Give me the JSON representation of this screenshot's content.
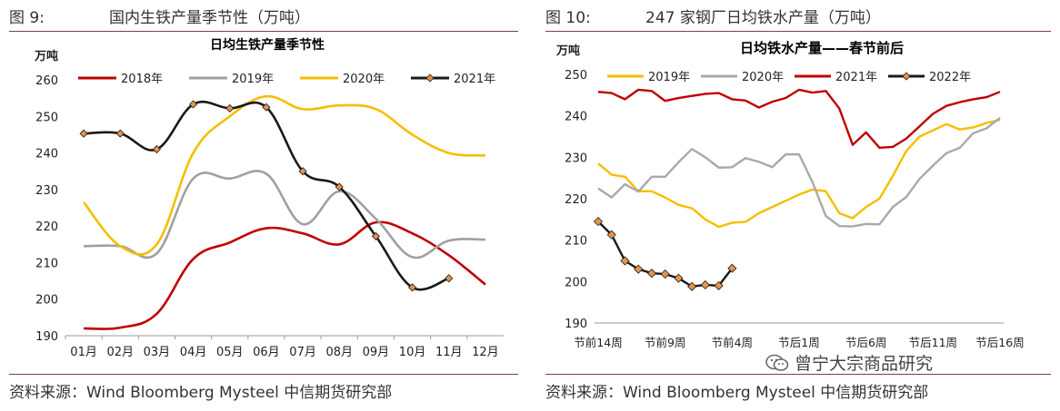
{
  "left_figure": {
    "label": "图 9:",
    "title": "国内生铁产量季节性（万吨）",
    "source": "资料来源：Wind Bloomberg Mysteel 中信期货研究部"
  },
  "right_figure": {
    "label": "图 10:",
    "title": "247 家钢厂日均铁水产量（万吨）",
    "source": "资料来源：Wind Bloomberg Mysteel 中信期货研究部"
  },
  "watermark": {
    "text": "曾宁大宗商品研究",
    "icon": "wechat-icon"
  },
  "chart_data": [
    {
      "type": "line",
      "title": "日均生铁产量季节性",
      "ylabel": "万吨",
      "xlabel": "",
      "categories": [
        "01月",
        "02月",
        "03月",
        "04月",
        "05月",
        "06月",
        "07月",
        "08月",
        "09月",
        "10月",
        "11月",
        "12月"
      ],
      "ylim": [
        190,
        260
      ],
      "yticks": [
        190,
        200,
        210,
        220,
        230,
        240,
        250,
        260
      ],
      "grid": false,
      "legend": "top",
      "series": [
        {
          "name": "2018年",
          "color": "#c00000",
          "markers": false,
          "values": [
            192.0,
            192.2,
            196.0,
            211.0,
            215.5,
            219.4,
            218.0,
            215.0,
            221.0,
            218.0,
            212.0,
            204.0
          ]
        },
        {
          "name": "2019年",
          "color": "#a0a0a0",
          "markers": false,
          "values": [
            214.5,
            214.5,
            212.5,
            233.0,
            233.0,
            234.3,
            220.5,
            229.5,
            222.0,
            211.5,
            216.0,
            216.3
          ]
        },
        {
          "name": "2020年",
          "color": "#f5be00",
          "markers": false,
          "values": [
            226.5,
            214.5,
            215.0,
            240.0,
            250.0,
            255.5,
            252.0,
            253.0,
            252.0,
            245.0,
            240.0,
            239.3
          ]
        },
        {
          "name": "2021年",
          "color": "#1a1a1a",
          "markers": true,
          "marker_color": "#e8944a",
          "values": [
            245.3,
            245.3,
            241.0,
            253.3,
            252.2,
            252.5,
            235.0,
            230.7,
            217.2,
            203.2,
            205.7,
            null
          ]
        }
      ]
    },
    {
      "type": "line",
      "title": "日均铁水产量——春节前后",
      "ylabel": "万吨",
      "xlabel": "",
      "x_tick_labels": [
        "节前14周",
        "节前9周",
        "节前4周",
        "节后1周",
        "节后6周",
        "节后11周",
        "节后16周"
      ],
      "ylim": [
        190,
        250
      ],
      "yticks": [
        190,
        200,
        210,
        220,
        230,
        240,
        250
      ],
      "grid": false,
      "legend": "top",
      "series": [
        {
          "name": "2019年",
          "color": "#f5be00",
          "markers": false,
          "values": [
            228.5,
            225.8,
            225.3,
            221.8,
            221.8,
            220.3,
            218.5,
            217.7,
            215.0,
            213.2,
            214.2,
            214.4,
            216.5,
            218.0,
            219.5,
            221.0,
            222.2,
            221.8,
            216.5,
            215.3,
            218.0,
            220.0,
            225.5,
            231.5,
            235.0,
            236.5,
            238.0,
            236.7,
            237.2,
            238.3,
            239.0
          ]
        },
        {
          "name": "2020年",
          "color": "#a9a9a9",
          "markers": false,
          "values": [
            222.5,
            220.3,
            223.5,
            221.7,
            225.3,
            225.3,
            228.8,
            232.0,
            230.0,
            227.5,
            227.6,
            229.8,
            228.9,
            227.6,
            230.7,
            230.7,
            224.0,
            215.8,
            213.4,
            213.3,
            213.9,
            213.8,
            218.0,
            220.4,
            224.8,
            228.0,
            231.0,
            232.3,
            235.8,
            237.0,
            239.5
          ]
        },
        {
          "name": "2021年",
          "color": "#c00000",
          "markers": false,
          "values": [
            245.8,
            245.5,
            244.0,
            246.3,
            246.0,
            243.6,
            244.3,
            244.8,
            245.3,
            245.5,
            244.0,
            243.7,
            242.0,
            243.4,
            244.3,
            246.3,
            245.6,
            246.0,
            241.8,
            233.0,
            236.0,
            232.3,
            232.5,
            234.5,
            237.5,
            240.5,
            242.4,
            243.3,
            244.0,
            244.5,
            245.8
          ]
        },
        {
          "name": "2022年",
          "color": "#1a1a1a",
          "markers": true,
          "marker_color": "#e8944a",
          "values": [
            214.5,
            211.3,
            205.0,
            203.0,
            202.0,
            201.8,
            200.8,
            198.8,
            199.2,
            199.0,
            203.2
          ]
        }
      ]
    }
  ]
}
